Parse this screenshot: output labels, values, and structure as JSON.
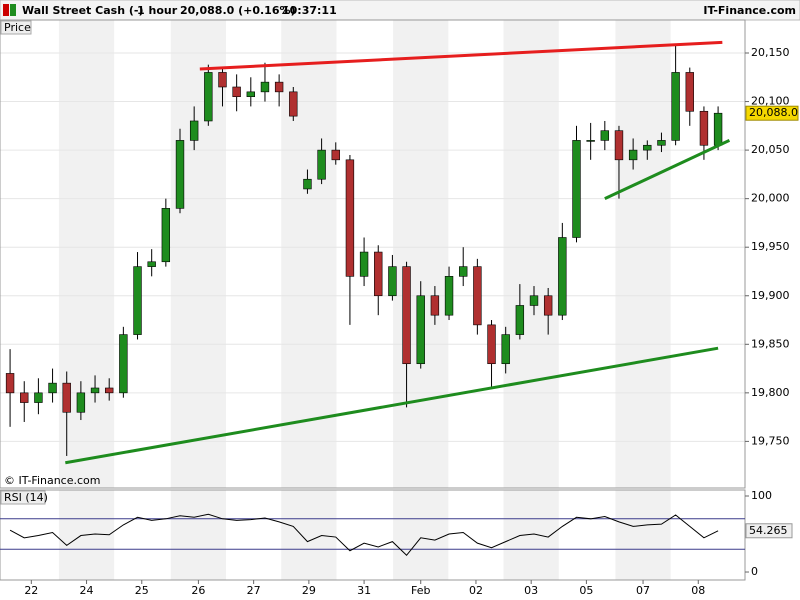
{
  "header": {
    "title": "Wall Street Cash (-)",
    "interval": "1 hour",
    "quote": "20,088.0 (+0.16%)",
    "time": "10:37:11",
    "source": "IT-Finance.com"
  },
  "chart_data": [
    {
      "type": "candlestick",
      "y_label": "Price",
      "copyright": "© IT-Finance.com",
      "up_color": "#1e8c1e",
      "down_color": "#b03030",
      "open": [
        19820,
        19800,
        19790,
        19800,
        19810,
        19780,
        19800,
        19805,
        19800,
        19860,
        19930,
        19935,
        19990,
        20060,
        20080,
        20130,
        20115,
        20105,
        20110,
        20120,
        20110,
        20010,
        20020,
        20050,
        20040,
        19920,
        19945,
        19900,
        19930,
        19830,
        19900,
        19880,
        19920,
        19930,
        19870,
        19830,
        19860,
        19890,
        19900,
        19880,
        19960,
        20060,
        20060,
        20070,
        20040,
        20050,
        20055,
        20060,
        20130,
        20090,
        20055
      ],
      "high": [
        19845,
        19812,
        19815,
        19825,
        19822,
        19812,
        19818,
        19815,
        19868,
        19945,
        19948,
        20000,
        20072,
        20095,
        20138,
        20136,
        20128,
        20125,
        20140,
        20128,
        20115,
        20030,
        20062,
        20058,
        20045,
        19960,
        19952,
        19942,
        19935,
        19915,
        19910,
        19930,
        19950,
        19938,
        19875,
        19868,
        19912,
        19910,
        19908,
        19975,
        20075,
        20078,
        20080,
        20075,
        20062,
        20060,
        20068,
        20158,
        20135,
        20095,
        20095
      ],
      "low": [
        19765,
        19770,
        19778,
        19790,
        19735,
        19772,
        19790,
        19792,
        19795,
        19855,
        19920,
        19930,
        19985,
        20050,
        20075,
        20095,
        20090,
        20095,
        20100,
        20095,
        20080,
        20005,
        20015,
        20035,
        19870,
        19910,
        19880,
        19895,
        19785,
        19825,
        19870,
        19875,
        19910,
        19860,
        19805,
        19820,
        19855,
        19880,
        19860,
        19875,
        19955,
        20040,
        20050,
        20000,
        20030,
        20040,
        20048,
        20055,
        20075,
        20040,
        20050
      ],
      "close": [
        19800,
        19790,
        19800,
        19810,
        19780,
        19800,
        19805,
        19800,
        19860,
        19930,
        19935,
        19990,
        20060,
        20080,
        20130,
        20115,
        20105,
        20110,
        20120,
        20110,
        20085,
        20020,
        20050,
        20040,
        19920,
        19945,
        19900,
        19930,
        19830,
        19900,
        19880,
        19920,
        19930,
        19870,
        19830,
        19860,
        19890,
        19900,
        19880,
        19960,
        20060,
        20060,
        20070,
        20040,
        20050,
        20055,
        20060,
        20130,
        20090,
        20055,
        20088
      ],
      "last_label": "20,088.0",
      "xlim": [
        -0.5,
        51.9
      ],
      "xticks": [
        {
          "value": 1.5,
          "label": "22"
        },
        {
          "value": 5.4,
          "label": "24"
        },
        {
          "value": 9.3,
          "label": "25"
        },
        {
          "value": 13.3,
          "label": "26"
        },
        {
          "value": 17.2,
          "label": "27"
        },
        {
          "value": 21.1,
          "label": "29"
        },
        {
          "value": 25.0,
          "label": "31"
        },
        {
          "value": 29.0,
          "label": "Feb"
        },
        {
          "value": 32.9,
          "label": "02"
        },
        {
          "value": 36.8,
          "label": "03"
        },
        {
          "value": 40.7,
          "label": "05"
        },
        {
          "value": 44.7,
          "label": "07"
        },
        {
          "value": 48.6,
          "label": "08"
        }
      ],
      "ylim": [
        19702,
        20184
      ],
      "yticks": [
        {
          "value": 19750,
          "label": "19,750"
        },
        {
          "value": 19800,
          "label": "19,800"
        },
        {
          "value": 19850,
          "label": "19,850"
        },
        {
          "value": 19900,
          "label": "19,900"
        },
        {
          "value": 19950,
          "label": "19,950"
        },
        {
          "value": 20000,
          "label": "20,000"
        },
        {
          "value": 20050,
          "label": "20,050"
        },
        {
          "value": 20100,
          "label": "20,100"
        },
        {
          "value": 20150,
          "label": "20,150"
        }
      ],
      "trendlines": [
        {
          "color": "#e61e1e",
          "x": [
            13.4,
            50.3
          ],
          "y": [
            20133.5,
            20161
          ]
        },
        {
          "color": "#1e8c1e",
          "x": [
            3.9,
            50.0
          ],
          "y": [
            19728,
            19846
          ]
        },
        {
          "color": "#1e8c1e",
          "x": [
            42.0,
            50.8
          ],
          "y": [
            20000,
            20060
          ]
        }
      ]
    },
    {
      "type": "line",
      "title": "RSI (14)",
      "color": "#000000",
      "level_color": "#3c3c8c",
      "values": [
        55,
        45,
        48,
        52,
        35,
        48,
        50,
        49,
        62,
        72,
        68,
        70,
        74,
        72,
        76,
        70,
        68,
        69,
        71,
        66,
        60,
        40,
        48,
        46,
        28,
        38,
        33,
        40,
        22,
        45,
        42,
        50,
        52,
        38,
        32,
        40,
        48,
        50,
        46,
        60,
        72,
        70,
        73,
        66,
        60,
        62,
        63,
        75,
        60,
        45,
        54.265
      ],
      "levels": [
        30,
        70
      ],
      "ylim": [
        -10.5,
        107.9
      ],
      "yticks": [
        0,
        100
      ]
    }
  ]
}
